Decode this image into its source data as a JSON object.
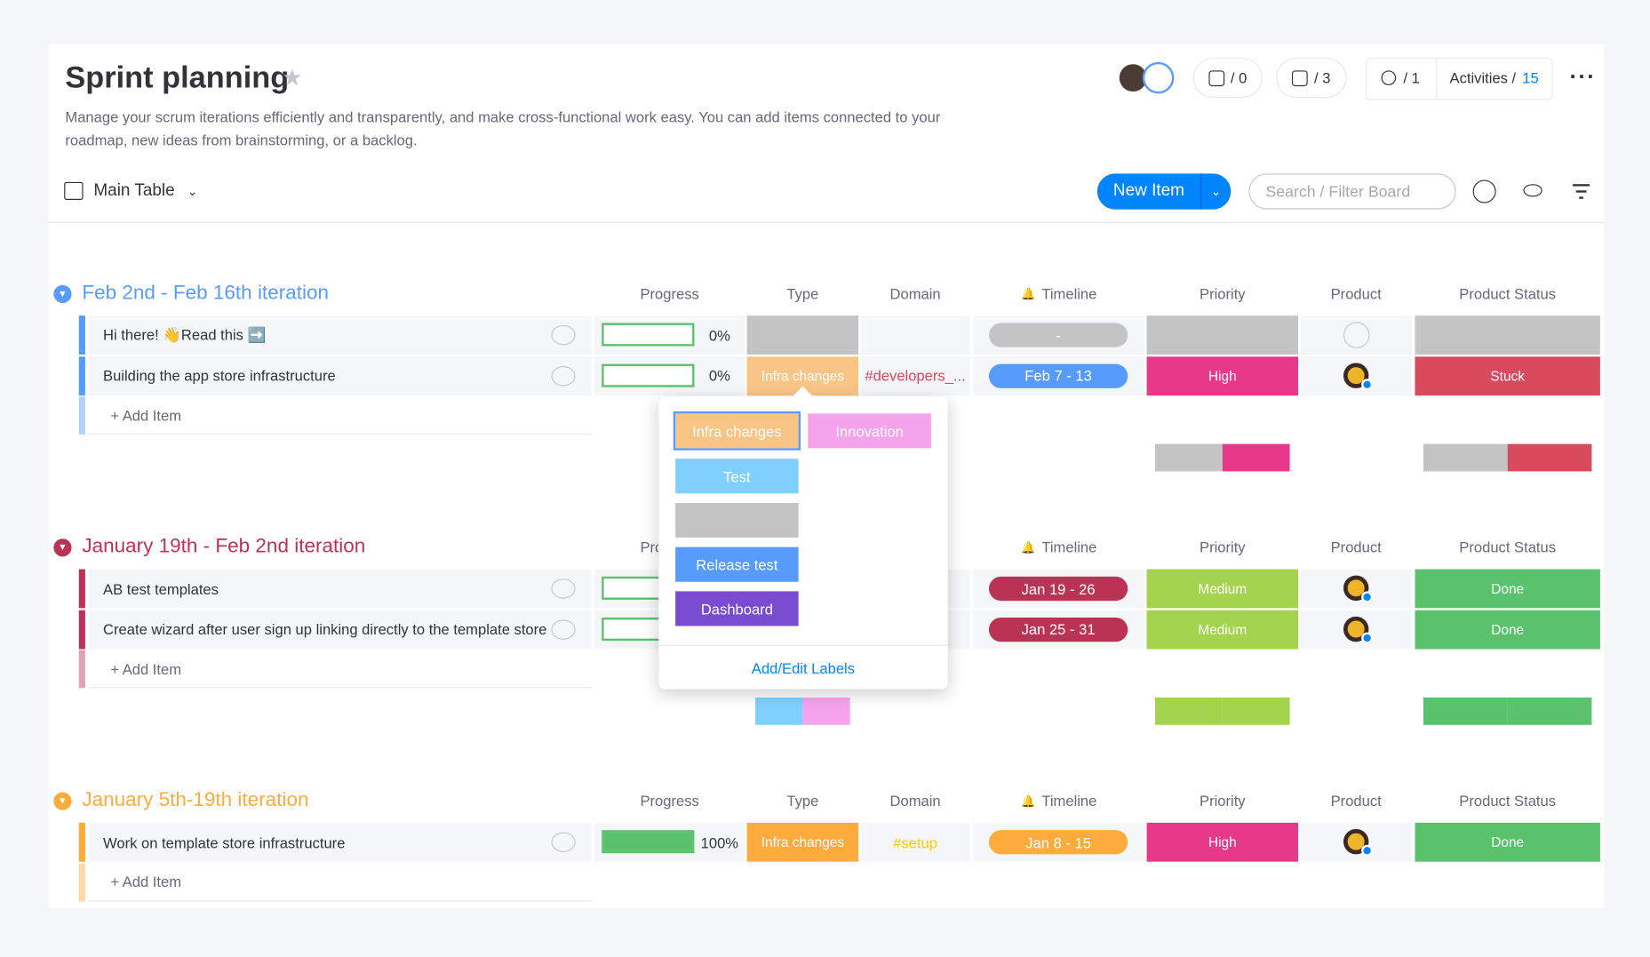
{
  "header": {
    "title": "Sprint planning",
    "description": "Manage your scrum iterations efficiently and transparently, and make cross-functional work easy. You can add items connected to your roadmap, new ideas from brainstorming, or a backlog.",
    "updates": "/ 0",
    "automations": "/ 3",
    "members": "/ 1",
    "activities_label": "Activities /",
    "activities_count": "15"
  },
  "toolbar": {
    "view": "Main Table",
    "new_item": "New Item",
    "search_placeholder": "Search / Filter Board"
  },
  "columns": [
    "Progress",
    "Type",
    "Domain",
    "Timeline",
    "Priority",
    "Product",
    "Product Status"
  ],
  "add_item": "+ Add Item",
  "groups": [
    {
      "title": "Feb 2nd - Feb 16th iteration",
      "color": "#579bfc",
      "items": [
        {
          "name": "Hi there! 👋Read this ➡️",
          "progress": "0%",
          "type": null,
          "type_color": "#c4c4c4",
          "domain": null,
          "domain_color": null,
          "timeline": "-",
          "timeline_color": "#c4c4c4",
          "priority": null,
          "priority_color": "#c4c4c4",
          "owner": false,
          "status": null,
          "status_color": "#c4c4c4"
        },
        {
          "name": "Building the app store infrastructure",
          "progress": "0%",
          "type": "Infra changes",
          "type_color": "#f8c585",
          "domain": "#developers_...",
          "domain_color": "#e2445c",
          "timeline": "Feb 7 - 13",
          "timeline_color": "#579bfc",
          "priority": "High",
          "priority_color": "#e8388a",
          "owner": true,
          "status": "Stuck",
          "status_color": "#d84a5c"
        }
      ]
    },
    {
      "title": "January 19th - Feb 2nd iteration",
      "color": "#bb3354",
      "items": [
        {
          "name": "AB test templates",
          "progress": null,
          "type": null,
          "type_color": "#7fcfff",
          "domain": null,
          "domain_color": null,
          "timeline": "Jan 19 - 26",
          "timeline_color": "#bb3354",
          "priority": "Medium",
          "priority_color": "#a4d34d",
          "owner": true,
          "status": "Done",
          "status_color": "#5ac26d"
        },
        {
          "name": "Create wizard after user sign up linking directly to the template store",
          "progress": null,
          "type": null,
          "type_color": "#f5a3ea",
          "domain": null,
          "domain_color": null,
          "timeline": "Jan 25 - 31",
          "timeline_color": "#bb3354",
          "priority": "Medium",
          "priority_color": "#a4d34d",
          "owner": true,
          "status": "Done",
          "status_color": "#5ac26d"
        }
      ]
    },
    {
      "title": "January 5th-19th iteration",
      "color": "#fdab3d",
      "items": [
        {
          "name": "Work on template store infrastructure",
          "progress": "100%",
          "type": "Infra changes",
          "type_color": "#fdab3d",
          "domain": "#setup",
          "domain_color": "#ffcb00",
          "timeline": "Jan 8 - 15",
          "timeline_color": "#fdab3d",
          "priority": "High",
          "priority_color": "#e8388a",
          "owner": true,
          "status": "Done",
          "status_color": "#5ac26d"
        }
      ]
    }
  ],
  "label_picker": {
    "labels": [
      {
        "text": "Infra changes",
        "color": "#f8c585"
      },
      {
        "text": "Innovation",
        "color": "#f5a3ea"
      },
      {
        "text": "Test",
        "color": "#7fcfff"
      },
      {
        "text": null,
        "color": "#c4c4c4"
      },
      {
        "text": "Release test",
        "color": "#579bfc"
      },
      {
        "text": "Dashboard",
        "color": "#784bd1"
      }
    ],
    "edit": "Add/Edit Labels"
  }
}
